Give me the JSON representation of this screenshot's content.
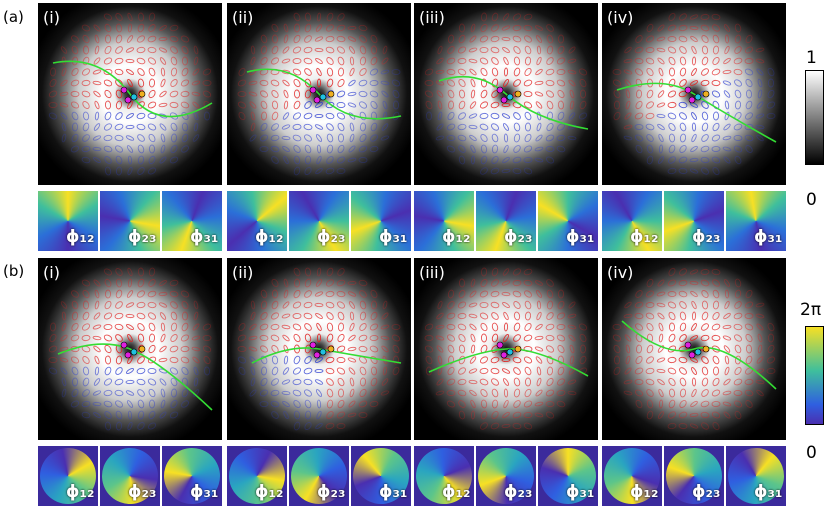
{
  "panels": [
    {
      "label": "(a)",
      "subpanels": [
        {
          "label": "(i)",
          "phases": [
            "ϕ₁₂",
            "ϕ₂₃",
            "ϕ₃₁"
          ]
        },
        {
          "label": "(ii)",
          "phases": [
            "ϕ₁₂",
            "ϕ₂₃",
            "ϕ₃₁"
          ]
        },
        {
          "label": "(iii)",
          "phases": [
            "ϕ₁₂",
            "ϕ₂₃",
            "ϕ₃₁"
          ]
        },
        {
          "label": "(iv)",
          "phases": [
            "ϕ₁₂",
            "ϕ₂₃",
            "ϕ₃₁"
          ]
        }
      ]
    },
    {
      "label": "(b)",
      "subpanels": [
        {
          "label": "(i)",
          "phases": [
            "ϕ₁₂",
            "ϕ₂₃",
            "ϕ₃₁"
          ]
        },
        {
          "label": "(ii)",
          "phases": [
            "ϕ₁₂",
            "ϕ₂₃",
            "ϕ₃₁"
          ]
        },
        {
          "label": "(iii)",
          "phases": [
            "ϕ₁₂",
            "ϕ₂₃",
            "ϕ₃₁"
          ]
        },
        {
          "label": "(iv)",
          "phases": [
            "ϕ₁₂",
            "ϕ₂₃",
            "ϕ₃₁"
          ]
        }
      ]
    }
  ],
  "colorbars": [
    {
      "top": "1",
      "bottom": "0"
    },
    {
      "top": "2π",
      "bottom": "0"
    }
  ]
}
